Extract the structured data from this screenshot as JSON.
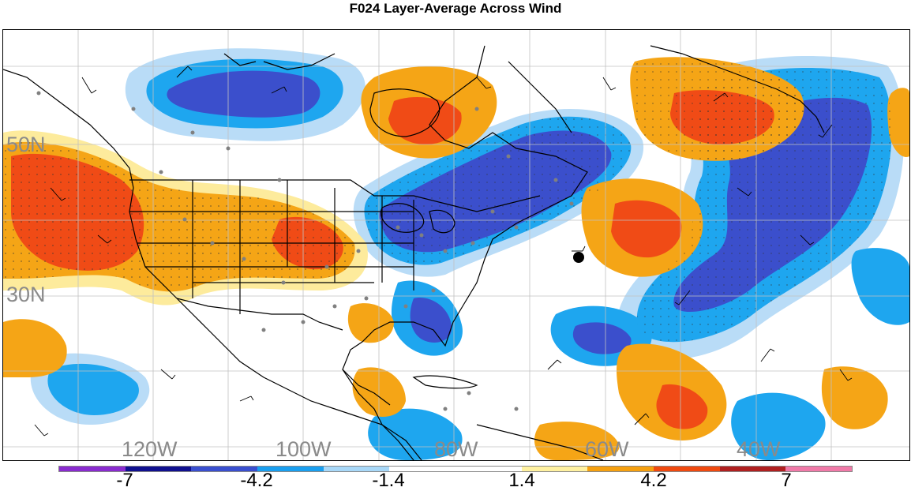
{
  "title": "F024 Layer-Average Across Wind",
  "latitude_labels": [
    "50N",
    "30N"
  ],
  "longitude_labels": [
    "120W",
    "100W",
    "80W",
    "60W",
    "40W"
  ],
  "colorbar": {
    "colors": [
      "#8a2ccf",
      "#10108f",
      "#3a4fcf",
      "#1a9fef",
      "#a8d8f8",
      "#ffffff",
      "#ffffff",
      "#fff1a0",
      "#f5a010",
      "#f04a10",
      "#b02020",
      "#f07aa8"
    ],
    "labels": [
      "-7",
      "-4.2",
      "-1.4",
      "1.4",
      "4.2",
      "7"
    ]
  },
  "colors": {
    "negative_light": "#b9dcf7",
    "negative_mid": "#1ea6ef",
    "negative_dark": "#3b4fcc",
    "positive_light": "#fdeb9c",
    "positive_mid": "#f5a516",
    "positive_dark": "#f04b16",
    "station_dot": "#808080",
    "gridline": "#c0c0c0"
  },
  "marker": "black-circle-marker"
}
